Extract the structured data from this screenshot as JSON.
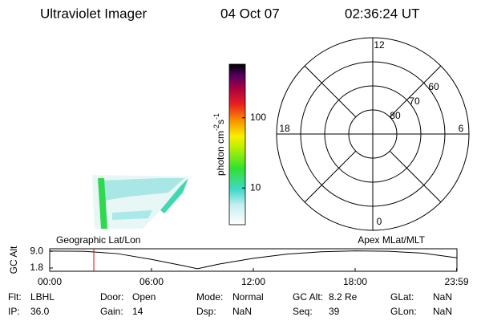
{
  "header": {
    "instrument": "Ultraviolet Imager",
    "date": "04 Oct 07",
    "time": "02:36:24 UT"
  },
  "colorbar": {
    "label": [
      "photon cm",
      "-2",
      "s",
      "-1"
    ],
    "scale": "log",
    "lim": [
      3,
      580
    ],
    "ticks": [
      10,
      100
    ]
  },
  "polar": {
    "lat_lim": [
      50,
      90
    ],
    "lat_ticks": [
      60,
      70,
      80
    ],
    "mlt_ticks": [
      0,
      6,
      12,
      18
    ]
  },
  "altitude_plot": {
    "ylabel": "GC Alt",
    "left_label": "Geographic Lat/Lon",
    "right_label": "Apex MLat/MLT",
    "xlim": [
      0,
      24
    ],
    "xticks": [
      {
        "value": 0,
        "label": "00:00"
      },
      {
        "value": 6,
        "label": "06:00"
      },
      {
        "value": 12,
        "label": "12:00"
      },
      {
        "value": 18,
        "label": "18:00"
      },
      {
        "value": 23.98,
        "label": "23:59"
      }
    ],
    "ylim": [
      0.4,
      10.1
    ],
    "yticks": [
      {
        "value": 9.0,
        "label": "9.0"
      },
      1.8
    ],
    "x": [
      0,
      2,
      4,
      6,
      8,
      8.7,
      10,
      12,
      14,
      16,
      18,
      20,
      22,
      24
    ],
    "values": [
      9.1,
      9.0,
      8.0,
      5.5,
      2.6,
      1.5,
      3.5,
      6.0,
      7.8,
      8.8,
      9.2,
      9.0,
      8.2,
      6.2
    ],
    "marker": 2.6
  },
  "footer": {
    "rows": [
      [
        [
          "Flt:",
          "LBHL"
        ],
        [
          "Door:",
          "Open"
        ],
        [
          "Mode:",
          "Normal"
        ],
        [
          "GC Alt:",
          "8.2 Re"
        ],
        [
          "GLat:",
          "NaN"
        ]
      ],
      [
        [
          "IP:",
          "36.0"
        ],
        [
          "Gain:",
          "14"
        ],
        [
          "Dsp:",
          "NaN"
        ],
        [
          "Seq:",
          "39"
        ],
        [
          "GLon:",
          "NaN"
        ]
      ]
    ]
  }
}
